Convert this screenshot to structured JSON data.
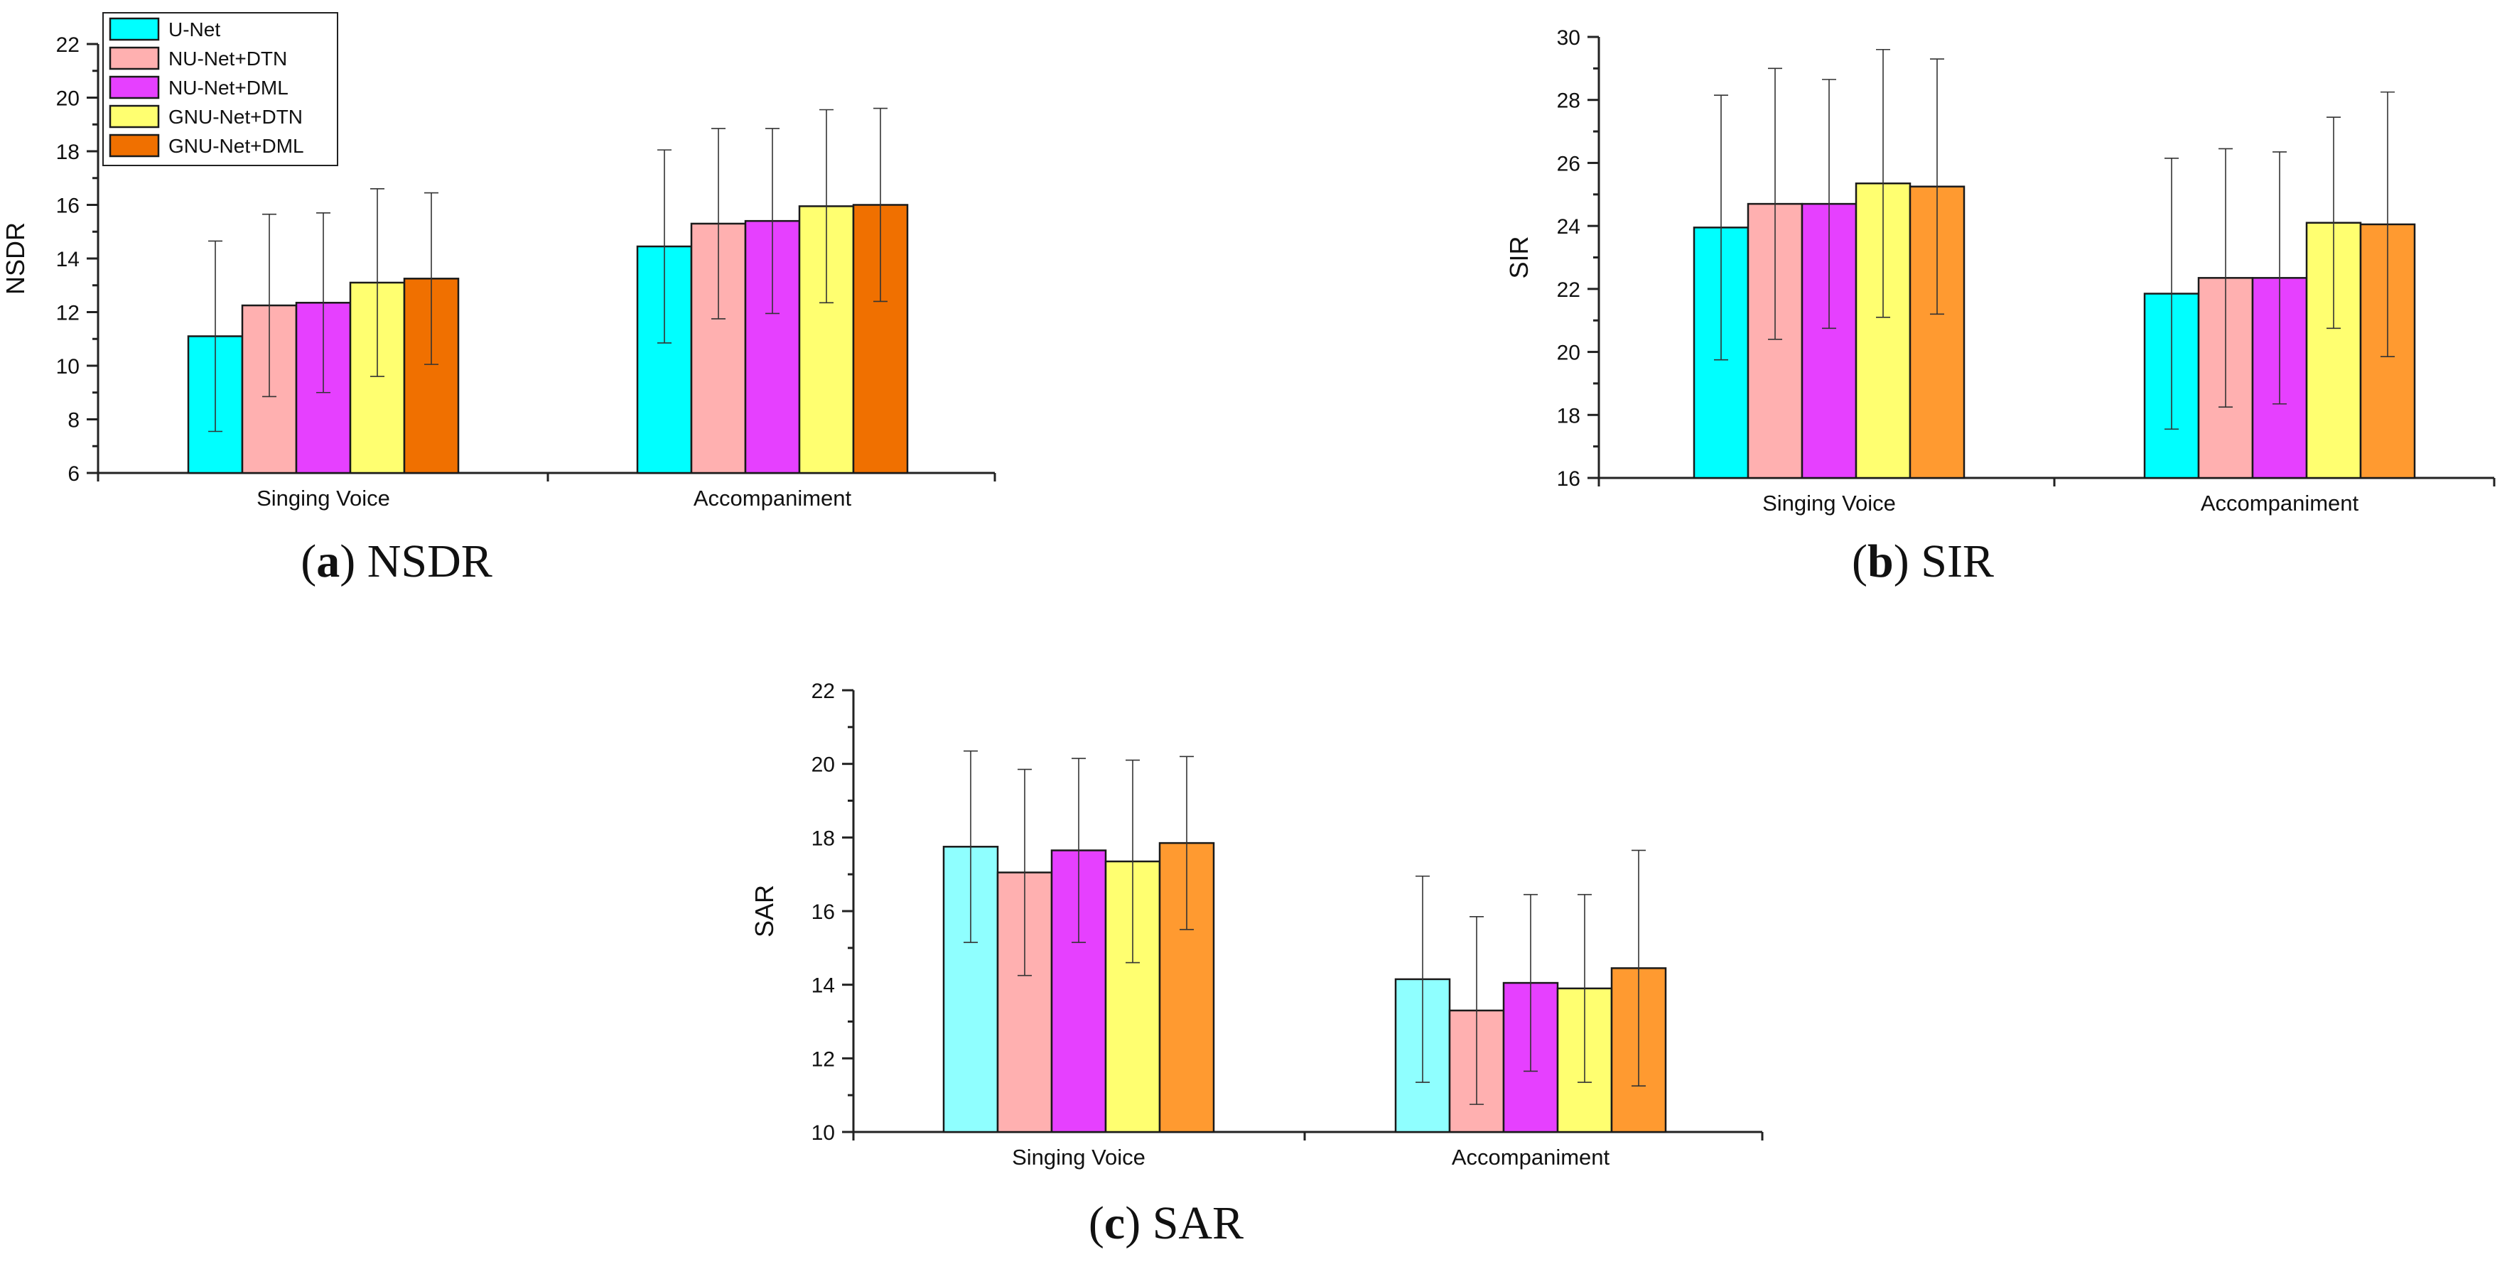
{
  "legend": [
    {
      "label": "U-Net"
    },
    {
      "label": "NU-Net+DTN"
    },
    {
      "label": "NU-Net+DML"
    },
    {
      "label": "GNU-Net+DTN"
    },
    {
      "label": "GNU-Net+DML"
    }
  ],
  "chart_data": [
    {
      "type": "bar",
      "caption_letter": "a",
      "caption_text": "NSDR",
      "ylabel": "NSDR",
      "xlabel": "",
      "ylim": [
        6,
        22
      ],
      "yticks": [
        "6",
        "8",
        "10",
        "12",
        "14",
        "16",
        "18",
        "20",
        "22"
      ],
      "categories": [
        "Singing Voice",
        "Accompaniment"
      ],
      "legend_position": "top-left",
      "series": [
        {
          "name": "U-Net",
          "color": "#00ffff",
          "values": [
            11.1,
            14.45
          ],
          "error": [
            3.55,
            3.6
          ]
        },
        {
          "name": "NU-Net+DTN",
          "color": "#ffb0b0",
          "values": [
            12.25,
            15.3
          ],
          "error": [
            3.4,
            3.55
          ]
        },
        {
          "name": "NU-Net+DML",
          "color": "#e640ff",
          "values": [
            12.35,
            15.4
          ],
          "error": [
            3.35,
            3.45
          ]
        },
        {
          "name": "GNU-Net+DTN",
          "color": "#ffff70",
          "values": [
            13.1,
            15.95
          ],
          "error": [
            3.5,
            3.6
          ]
        },
        {
          "name": "GNU-Net+DML",
          "color": "#f07000",
          "values": [
            13.25,
            16.0
          ],
          "error": [
            3.2,
            3.6
          ]
        }
      ]
    },
    {
      "type": "bar",
      "caption_letter": "b",
      "caption_text": "SIR",
      "ylabel": "SIR",
      "xlabel": "",
      "ylim": [
        16,
        30
      ],
      "yticks": [
        "16",
        "18",
        "20",
        "22",
        "24",
        "26",
        "28",
        "30"
      ],
      "categories": [
        "Singing Voice",
        "Accompaniment"
      ],
      "series": [
        {
          "name": "U-Net",
          "color": "#00ffff",
          "values": [
            23.95,
            21.85
          ],
          "error": [
            4.2,
            4.3
          ]
        },
        {
          "name": "NU-Net+DTN",
          "color": "#ffb0b0",
          "values": [
            24.7,
            22.35
          ],
          "error": [
            4.3,
            4.1
          ]
        },
        {
          "name": "NU-Net+DML",
          "color": "#e640ff",
          "values": [
            24.7,
            22.35
          ],
          "error": [
            3.95,
            4.0
          ]
        },
        {
          "name": "GNU-Net+DTN",
          "color": "#ffff70",
          "values": [
            25.35,
            24.1
          ],
          "error": [
            4.25,
            3.35
          ]
        },
        {
          "name": "GNU-Net+DML",
          "color": "#ff9a30",
          "values": [
            25.25,
            24.05
          ],
          "error": [
            4.05,
            4.2
          ]
        }
      ]
    },
    {
      "type": "bar",
      "caption_letter": "c",
      "caption_text": "SAR",
      "ylabel": "SAR",
      "xlabel": "",
      "ylim": [
        10,
        22
      ],
      "yticks": [
        "10",
        "12",
        "14",
        "16",
        "18",
        "20",
        "22"
      ],
      "categories": [
        "Singing Voice",
        "Accompaniment"
      ],
      "series": [
        {
          "name": "U-Net",
          "color": "#8fffff",
          "values": [
            17.75,
            14.15
          ],
          "error": [
            2.6,
            2.8
          ]
        },
        {
          "name": "NU-Net+DTN",
          "color": "#ffb0b0",
          "values": [
            17.05,
            13.3
          ],
          "error": [
            2.8,
            2.55
          ]
        },
        {
          "name": "NU-Net+DML",
          "color": "#e640ff",
          "values": [
            17.65,
            14.05
          ],
          "error": [
            2.5,
            2.4
          ]
        },
        {
          "name": "GNU-Net+DTN",
          "color": "#ffff70",
          "values": [
            17.35,
            13.9
          ],
          "error": [
            2.75,
            2.55
          ]
        },
        {
          "name": "GNU-Net+DML",
          "color": "#ff9a30",
          "values": [
            17.85,
            14.45
          ],
          "error": [
            2.35,
            3.2
          ]
        }
      ]
    }
  ]
}
